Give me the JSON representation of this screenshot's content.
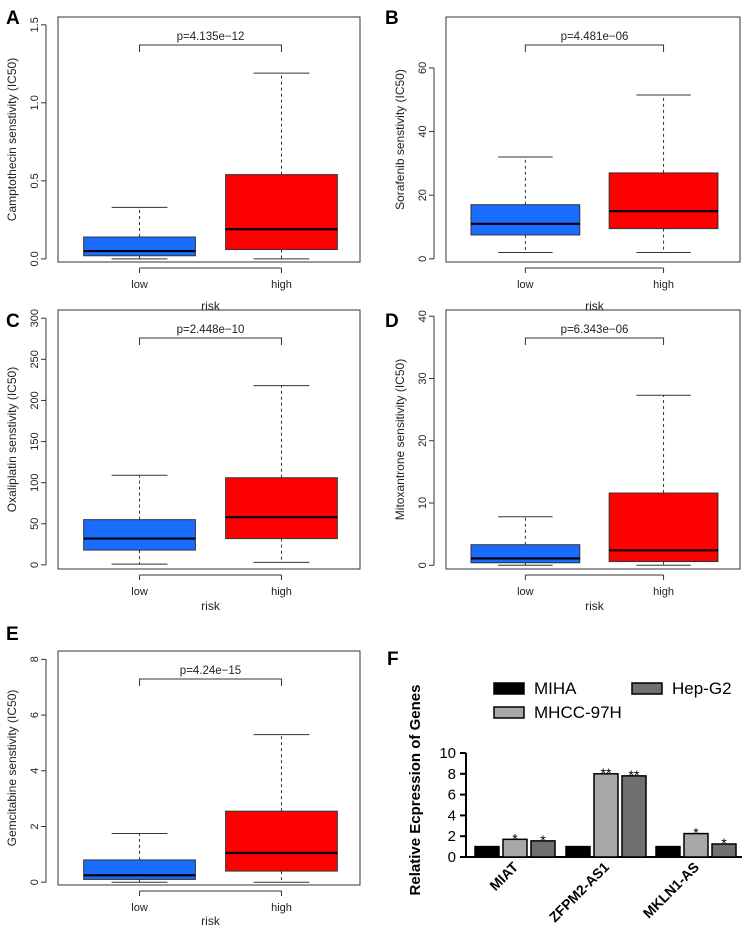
{
  "colors": {
    "low": "#1a6cff",
    "high": "#ff0000",
    "miha": "#000000",
    "mhcc": "#a8a8a8",
    "hepg2": "#707070"
  },
  "chart_data": [
    {
      "panel": "A",
      "type": "box",
      "xlabel": "risk",
      "ylabel": "Camptothecin senstivity (IC50)",
      "ylim": [
        -0.02,
        1.55
      ],
      "yticks": [
        0.0,
        0.5,
        1.0,
        1.5
      ],
      "ytick_labels": [
        "0.0",
        "0.5",
        "1.0",
        "1.5"
      ],
      "pvalue": "p=4.135e−12",
      "categories": [
        "low",
        "high"
      ],
      "boxes": [
        {
          "name": "low",
          "whisker_low": 0.0,
          "q1": 0.02,
          "median": 0.05,
          "q3": 0.14,
          "whisker_high": 0.33
        },
        {
          "name": "high",
          "whisker_low": 0.0,
          "q1": 0.06,
          "median": 0.19,
          "q3": 0.54,
          "whisker_high": 1.19
        }
      ]
    },
    {
      "panel": "B",
      "type": "box",
      "xlabel": "risk",
      "ylabel": "Sorafenib senstivity (IC50)",
      "ylim": [
        -1,
        76
      ],
      "yticks": [
        0,
        20,
        40,
        60
      ],
      "ytick_labels": [
        "0",
        "20",
        "40",
        "60"
      ],
      "pvalue": "p=4.481e−06",
      "categories": [
        "low",
        "high"
      ],
      "boxes": [
        {
          "name": "low",
          "whisker_low": 2,
          "q1": 7.5,
          "median": 11,
          "q3": 17,
          "whisker_high": 32
        },
        {
          "name": "high",
          "whisker_low": 2,
          "q1": 9.5,
          "median": 15,
          "q3": 27,
          "whisker_high": 51.5
        }
      ]
    },
    {
      "panel": "C",
      "type": "box",
      "xlabel": "risk",
      "ylabel": "Oxaliplatin senstivity (IC50)",
      "ylim": [
        -5,
        310
      ],
      "yticks": [
        0,
        50,
        100,
        150,
        200,
        250,
        300
      ],
      "ytick_labels": [
        "0",
        "50",
        "100",
        "150",
        "200",
        "250",
        "300"
      ],
      "pvalue": "p=2.448e−10",
      "categories": [
        "low",
        "high"
      ],
      "boxes": [
        {
          "name": "low",
          "whisker_low": 1,
          "q1": 18,
          "median": 32,
          "q3": 55,
          "whisker_high": 109
        },
        {
          "name": "high",
          "whisker_low": 3,
          "q1": 32,
          "median": 58,
          "q3": 106,
          "whisker_high": 218
        }
      ]
    },
    {
      "panel": "D",
      "type": "box",
      "xlabel": "risk",
      "ylabel": "Mitoxantrone sensitivity (IC50)",
      "ylim": [
        -0.6,
        41
      ],
      "yticks": [
        0,
        10,
        20,
        30,
        40
      ],
      "ytick_labels": [
        "0",
        "10",
        "20",
        "30",
        "40"
      ],
      "pvalue": "p=6.343e−06",
      "categories": [
        "low",
        "high"
      ],
      "boxes": [
        {
          "name": "low",
          "whisker_low": 0,
          "q1": 0.4,
          "median": 1.1,
          "q3": 3.3,
          "whisker_high": 7.8
        },
        {
          "name": "high",
          "whisker_low": 0,
          "q1": 0.6,
          "median": 2.4,
          "q3": 11.6,
          "whisker_high": 27.3
        }
      ]
    },
    {
      "panel": "E",
      "type": "box",
      "xlabel": "risk",
      "ylabel": "Gemcitabine senstivity (IC50)",
      "ylim": [
        -0.1,
        8.3
      ],
      "yticks": [
        0,
        2,
        4,
        6,
        8
      ],
      "ytick_labels": [
        "0",
        "2",
        "4",
        "6",
        "8"
      ],
      "pvalue": "p=4.24e−15",
      "categories": [
        "low",
        "high"
      ],
      "boxes": [
        {
          "name": "low",
          "whisker_low": 0,
          "q1": 0.1,
          "median": 0.25,
          "q3": 0.8,
          "whisker_high": 1.75
        },
        {
          "name": "high",
          "whisker_low": 0,
          "q1": 0.4,
          "median": 1.05,
          "q3": 2.55,
          "whisker_high": 5.3
        }
      ]
    },
    {
      "panel": "F",
      "type": "bar",
      "ylabel": "Relative Ecpression of Genes",
      "ylim": [
        0,
        10
      ],
      "yticks": [
        0,
        2,
        4,
        6,
        8,
        10
      ],
      "ytick_labels": [
        "0",
        "2",
        "4",
        "6",
        "8",
        "10"
      ],
      "categories": [
        "MIAT",
        "ZFPM2-AS1",
        "MKLN1-AS"
      ],
      "legend": [
        "MIHA",
        "MHCC-97H",
        "Hep-G2"
      ],
      "series": [
        {
          "name": "MIHA",
          "values": [
            1.0,
            1.0,
            1.0
          ],
          "marks": [
            "",
            "",
            ""
          ]
        },
        {
          "name": "MHCC-97H",
          "values": [
            1.7,
            8.0,
            2.25
          ],
          "marks": [
            "*",
            "**",
            "*"
          ]
        },
        {
          "name": "Hep-G2",
          "values": [
            1.55,
            7.8,
            1.25
          ],
          "marks": [
            "*",
            "**",
            "*"
          ]
        }
      ]
    }
  ]
}
